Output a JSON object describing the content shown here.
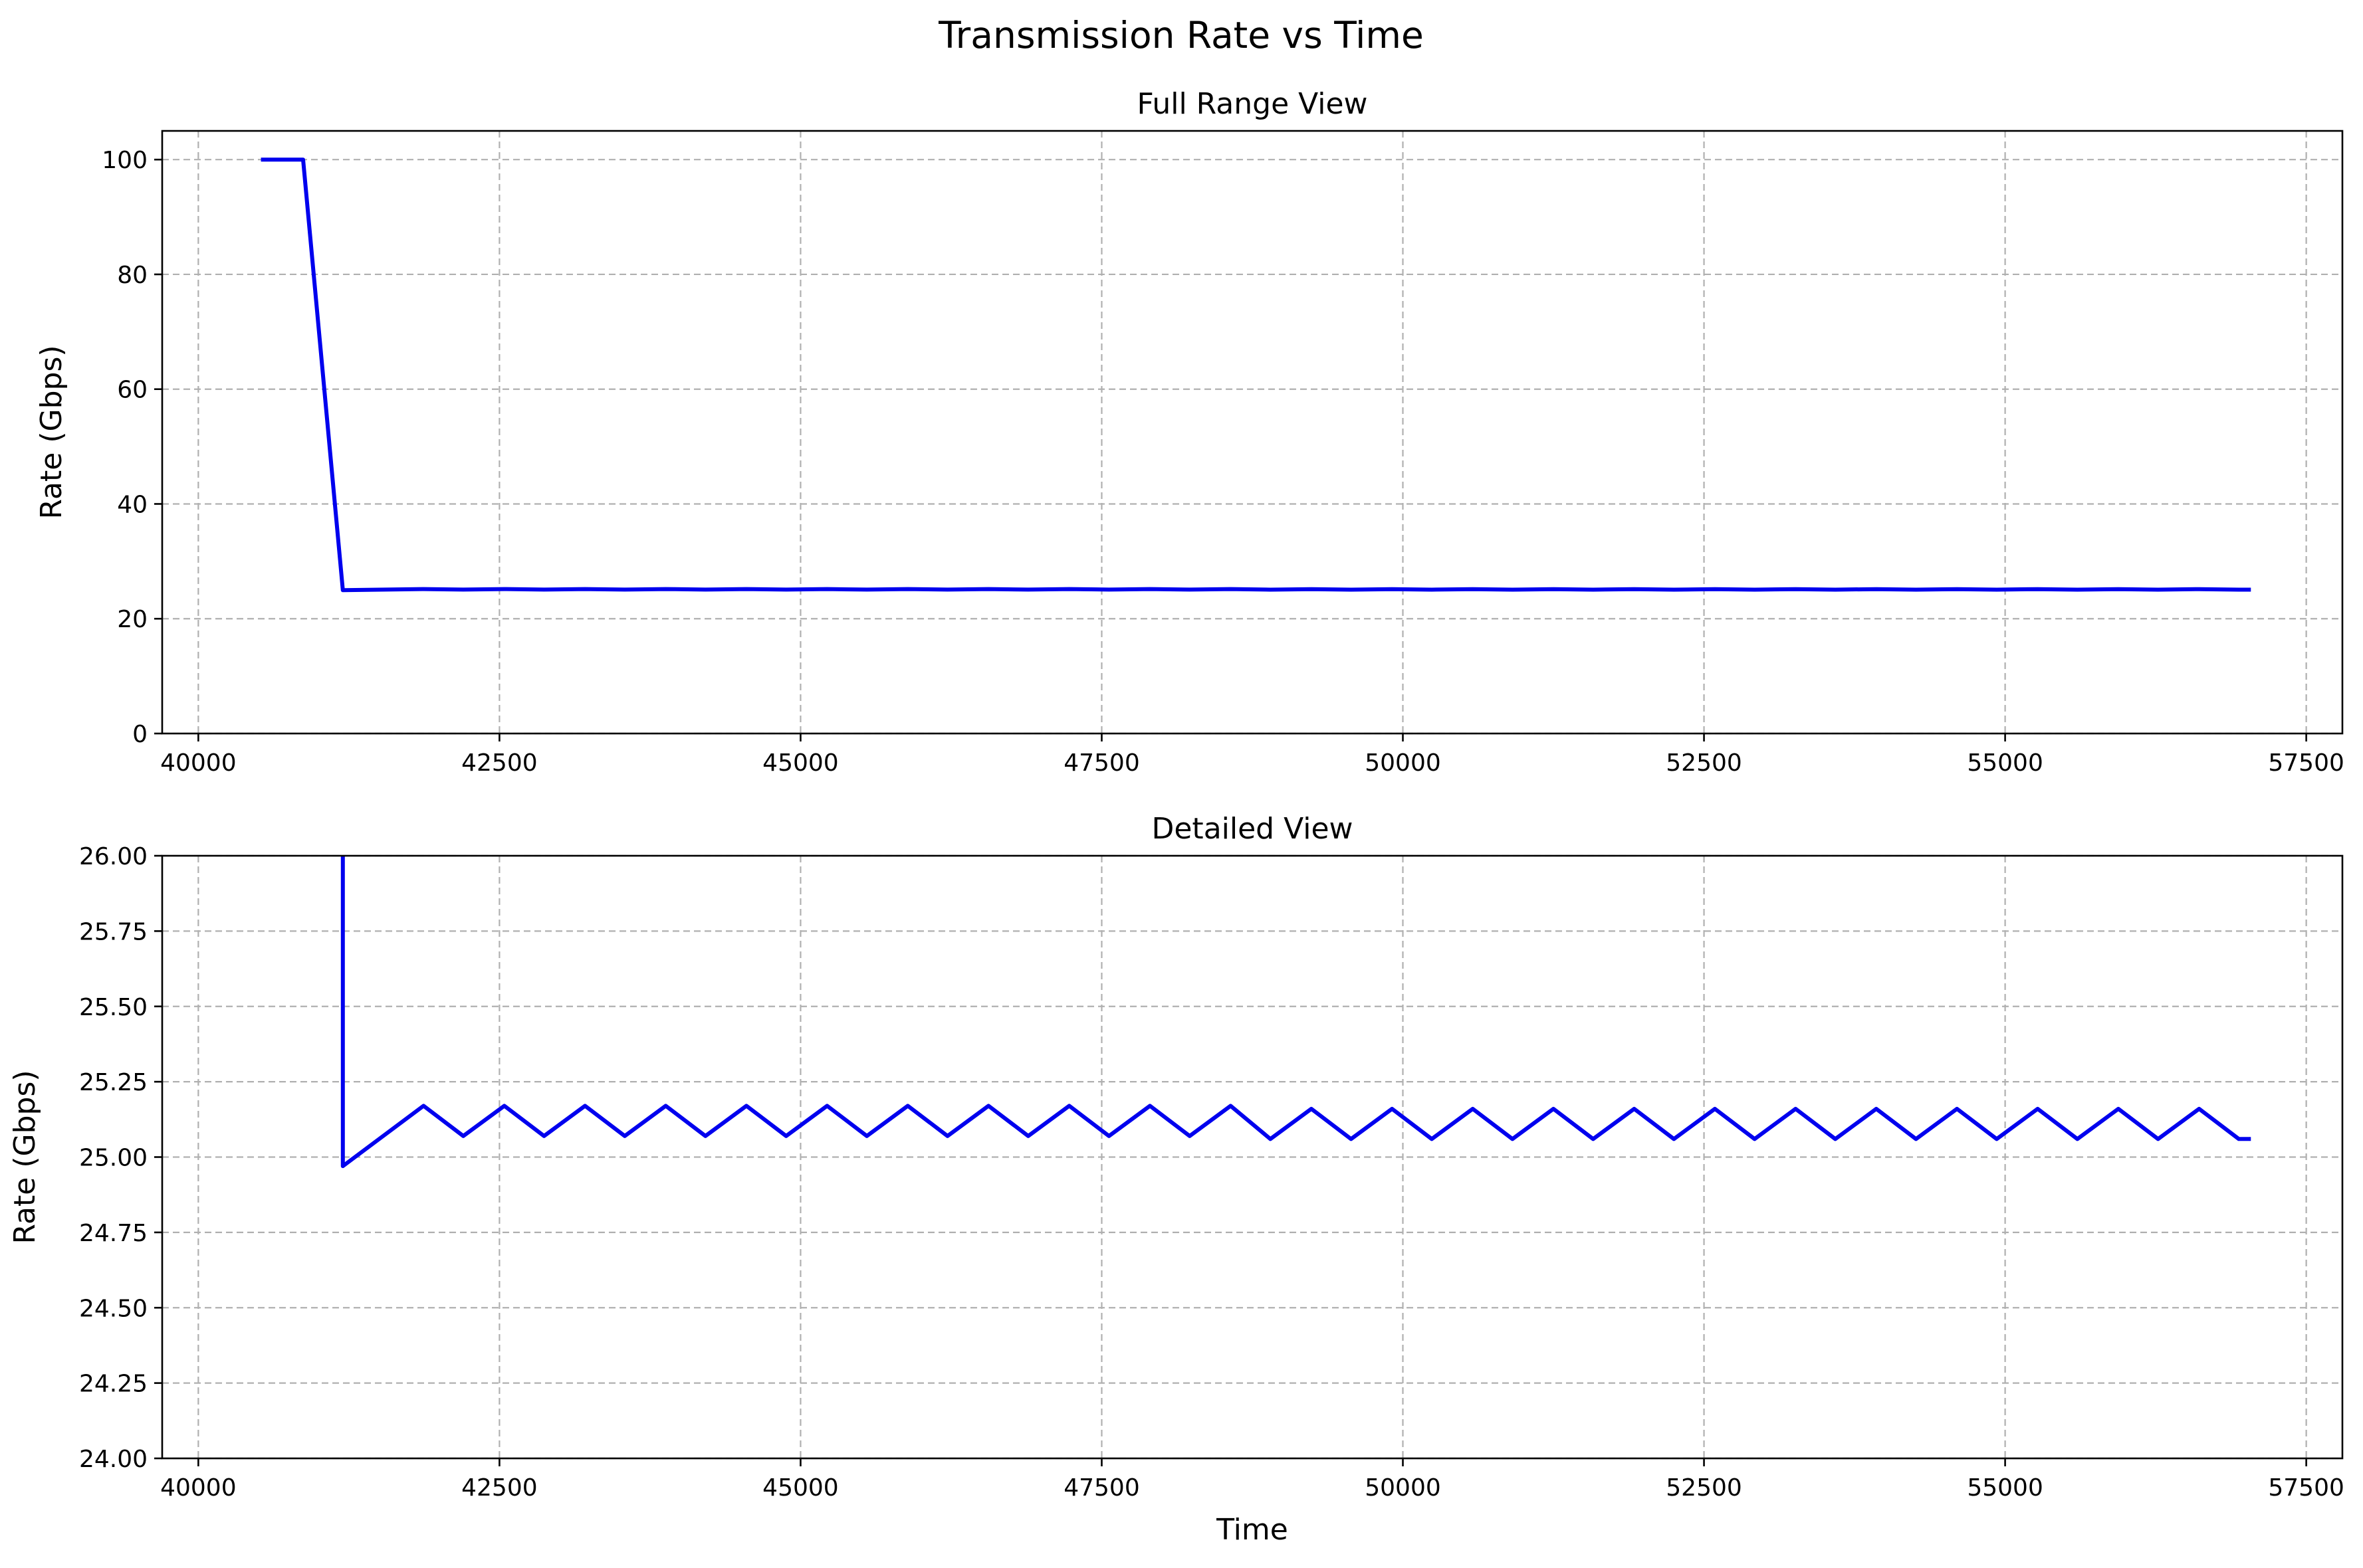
{
  "figure": {
    "title": "Transmission Rate vs Time"
  },
  "colors": {
    "series": "#0000ee",
    "grid": "#b0b0b0"
  },
  "chart_data": [
    {
      "type": "line",
      "title": "Full Range View",
      "xlabel": "",
      "ylabel": "Rate (Gbps)",
      "xlim": [
        39700,
        57800
      ],
      "ylim": [
        0,
        105
      ],
      "xticks": [
        40000,
        42500,
        45000,
        47500,
        50000,
        52500,
        55000,
        57500
      ],
      "xtick_labels": [
        "40000",
        "42500",
        "45000",
        "47500",
        "50000",
        "52500",
        "55000",
        "57500"
      ],
      "yticks": [
        0,
        20,
        40,
        60,
        80,
        100
      ],
      "ytick_labels": [
        "0",
        "20",
        "40",
        "60",
        "80",
        "100"
      ],
      "grid": true,
      "series": [
        {
          "x": [
            40520,
            40870,
            41200,
            41870,
            42200,
            42540,
            42870,
            43210,
            43540,
            43880,
            44210,
            44550,
            44880,
            45220,
            45550,
            45890,
            46220,
            46560,
            46890,
            47230,
            47560,
            47900,
            48230,
            48570,
            48900,
            49240,
            49570,
            49910,
            50240,
            50580,
            50910,
            51250,
            51580,
            51920,
            52250,
            52590,
            52920,
            53260,
            53590,
            53930,
            54260,
            54600,
            54930,
            55270,
            55600,
            55940,
            56270,
            56610,
            56940,
            57040
          ],
          "y": [
            100,
            100,
            24.97,
            25.17,
            25.07,
            25.17,
            25.07,
            25.17,
            25.07,
            25.17,
            25.07,
            25.17,
            25.07,
            25.17,
            25.07,
            25.17,
            25.07,
            25.17,
            25.07,
            25.17,
            25.07,
            25.17,
            25.07,
            25.17,
            25.06,
            25.16,
            25.06,
            25.16,
            25.06,
            25.16,
            25.06,
            25.16,
            25.06,
            25.16,
            25.06,
            25.16,
            25.06,
            25.16,
            25.06,
            25.16,
            25.06,
            25.16,
            25.06,
            25.16,
            25.06,
            25.16,
            25.06,
            25.16,
            25.06,
            25.06
          ]
        }
      ]
    },
    {
      "type": "line",
      "title": "Detailed View",
      "xlabel": "Time",
      "ylabel": "Rate (Gbps)",
      "xlim": [
        39700,
        57800
      ],
      "ylim": [
        24.0,
        26.0
      ],
      "xticks": [
        40000,
        42500,
        45000,
        47500,
        50000,
        52500,
        55000,
        57500
      ],
      "xtick_labels": [
        "40000",
        "42500",
        "45000",
        "47500",
        "50000",
        "52500",
        "55000",
        "57500"
      ],
      "yticks": [
        24.0,
        24.25,
        24.5,
        24.75,
        25.0,
        25.25,
        25.5,
        25.75,
        26.0
      ],
      "ytick_labels": [
        "24.00",
        "24.25",
        "24.50",
        "24.75",
        "25.00",
        "25.25",
        "25.50",
        "25.75",
        "26.00"
      ],
      "grid": true,
      "series": [
        {
          "x": [
            41200,
            41200,
            41870,
            42200,
            42540,
            42870,
            43210,
            43540,
            43880,
            44210,
            44550,
            44880,
            45220,
            45550,
            45890,
            46220,
            46560,
            46890,
            47230,
            47560,
            47900,
            48230,
            48570,
            48900,
            49240,
            49570,
            49910,
            50240,
            50580,
            50910,
            51250,
            51580,
            51920,
            52250,
            52590,
            52920,
            53260,
            53590,
            53930,
            54260,
            54600,
            54930,
            55270,
            55600,
            55940,
            56270,
            56610,
            56940,
            57040
          ],
          "y": [
            26.0,
            24.97,
            25.17,
            25.07,
            25.17,
            25.07,
            25.17,
            25.07,
            25.17,
            25.07,
            25.17,
            25.07,
            25.17,
            25.07,
            25.17,
            25.07,
            25.17,
            25.07,
            25.17,
            25.07,
            25.17,
            25.07,
            25.17,
            25.06,
            25.16,
            25.06,
            25.16,
            25.06,
            25.16,
            25.06,
            25.16,
            25.06,
            25.16,
            25.06,
            25.16,
            25.06,
            25.16,
            25.06,
            25.16,
            25.06,
            25.16,
            25.06,
            25.16,
            25.06,
            25.16,
            25.06,
            25.16,
            25.06,
            25.06
          ]
        }
      ]
    }
  ]
}
